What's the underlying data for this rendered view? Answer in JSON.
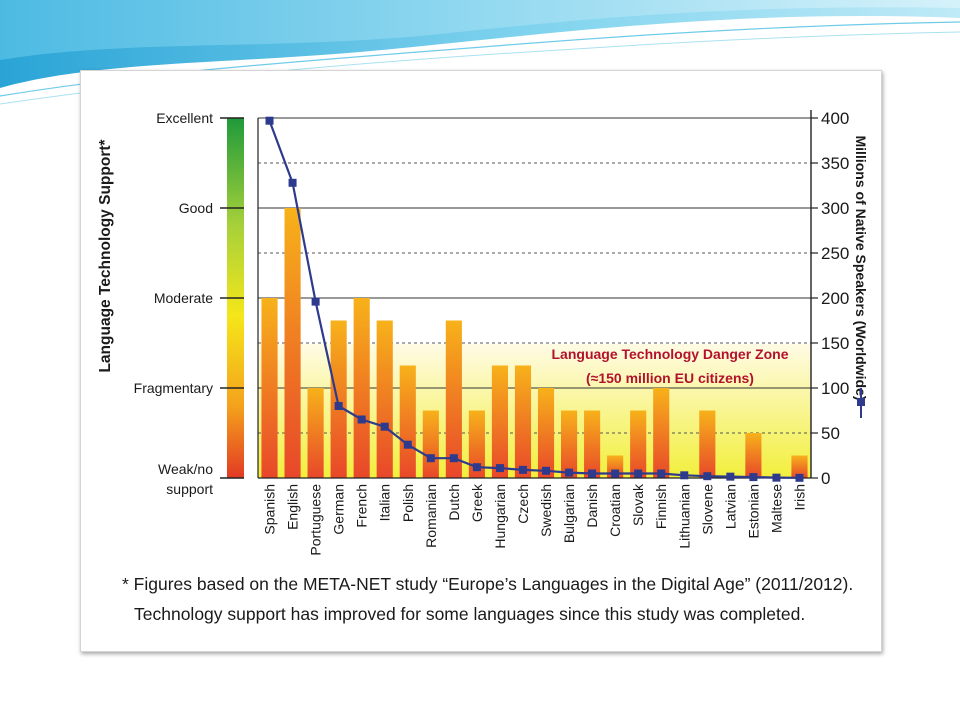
{
  "chart_data": {
    "type": "bar",
    "categories": [
      "Spanish",
      "English",
      "Portuguese",
      "German",
      "French",
      "Italian",
      "Polish",
      "Romanian",
      "Dutch",
      "Greek",
      "Hungarian",
      "Czech",
      "Swedish",
      "Bulgarian",
      "Danish",
      "Croatian",
      "Slovak",
      "Finnish",
      "Lithuanian",
      "Slovene",
      "Latvian",
      "Estonian",
      "Maltese",
      "Irish"
    ],
    "series": [
      {
        "axis": "left",
        "values": [
          2.0,
          3.0,
          1.0,
          1.75,
          2.0,
          1.75,
          1.25,
          0.75,
          1.75,
          0.75,
          1.25,
          1.25,
          1.0,
          0.75,
          0.75,
          0.25,
          0.75,
          1.0,
          0.0,
          0.75,
          0.0,
          0.5,
          0.0,
          0.25
        ]
      },
      {
        "axis": "right",
        "type": "line",
        "values": [
          397,
          328,
          196,
          80,
          65,
          57,
          37,
          22,
          22,
          12,
          11,
          9,
          8,
          6,
          5,
          5,
          5,
          5,
          3,
          2,
          1.5,
          1,
          0.4,
          0.2
        ]
      }
    ],
    "ylabel": "Language Technology Support*",
    "y_ticks": [
      "Weak/no support",
      "Fragmentary",
      "Moderate",
      "Good",
      "Excellent"
    ],
    "ylim": [
      0,
      4
    ],
    "y2label": "Millions of Native Speakers (Worldwide)",
    "y2_ticks": [
      "0",
      "50",
      "100",
      "150",
      "200",
      "250",
      "300",
      "350",
      "400"
    ],
    "y2lim": [
      0,
      400
    ],
    "grid": true,
    "annotation": {
      "title": "Language Technology Danger Zone",
      "subtitle": "(≈150 million EU citizens)",
      "y2_threshold": 150
    },
    "colors": {
      "line": "#2e3a8c",
      "annotation": "#b3122e",
      "bar_top": "#f7b21a",
      "bar_bottom": "#e8472a",
      "zone_top": "#fffbe5",
      "zone_bottom": "#f2ef3c"
    }
  },
  "footnote": {
    "line1": "* Figures based on the META-NET study “Europe’s Languages in the Digital Age” (2011/2012).",
    "line2": "Technology support has improved for some languages since this study was completed."
  }
}
